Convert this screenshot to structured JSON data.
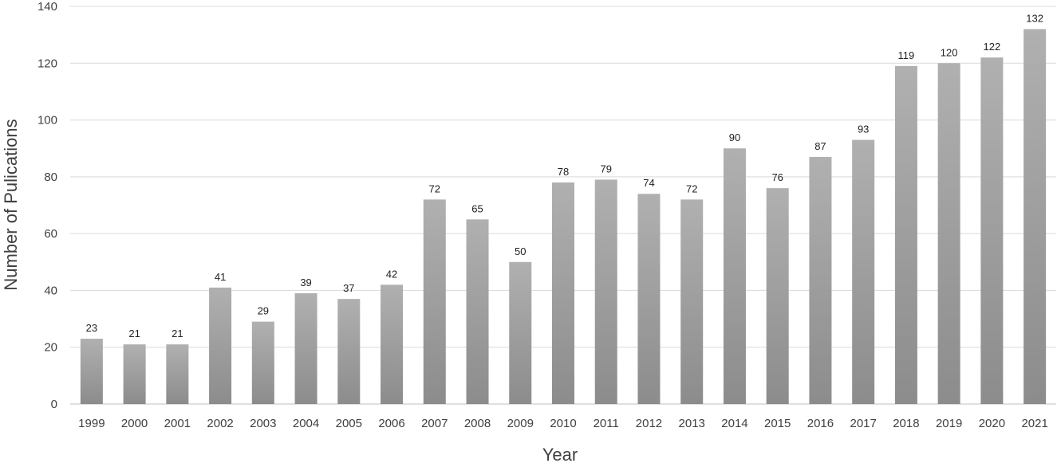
{
  "chart_data": {
    "type": "bar",
    "title": "",
    "xlabel": "Year",
    "ylabel": "Number of Pulications",
    "categories": [
      "1999",
      "2000",
      "2001",
      "2002",
      "2003",
      "2004",
      "2005",
      "2006",
      "2007",
      "2008",
      "2009",
      "2010",
      "2011",
      "2012",
      "2013",
      "2014",
      "2015",
      "2016",
      "2017",
      "2018",
      "2019",
      "2020",
      "2021"
    ],
    "values": [
      23,
      21,
      21,
      41,
      29,
      39,
      37,
      42,
      72,
      65,
      50,
      78,
      79,
      74,
      72,
      90,
      76,
      87,
      93,
      119,
      120,
      122,
      132
    ],
    "ylim": [
      0,
      140
    ],
    "yticks": [
      0,
      20,
      40,
      60,
      80,
      100,
      120,
      140
    ],
    "grid": true,
    "data_labels": true,
    "legend": "none",
    "colors": {
      "bar_top": "#b0b0b0",
      "bar_bottom": "#8c8c8c",
      "grid": "#d9d9d9",
      "text": "#404040"
    }
  }
}
